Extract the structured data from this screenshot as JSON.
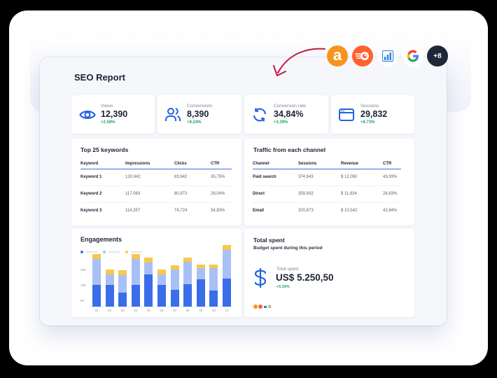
{
  "report": {
    "title": "SEO Report"
  },
  "integrations": {
    "logos": [
      {
        "name": "ahrefs-like-a-logo",
        "glyph": "a",
        "bg": "#f7941d"
      },
      {
        "name": "semrush-logo",
        "bg": "#ff622d"
      },
      {
        "name": "bar-chart-logo",
        "bg": "#ffffff"
      },
      {
        "name": "google-logo",
        "glyph": "G",
        "bg": "#ffffff"
      }
    ],
    "more_label": "+8",
    "more_bg": "#1e2637"
  },
  "kpis": [
    {
      "label": "Views",
      "value": "12,390",
      "change": "+2.59%",
      "icon": "eye-icon"
    },
    {
      "label": "Conversions",
      "value": "8,390",
      "change": "+9.24%",
      "icon": "users-icon"
    },
    {
      "label": "Conversion rate",
      "value": "34,84%",
      "change": "+3.39%",
      "icon": "refresh-icon"
    },
    {
      "label": "Sessions",
      "value": "29,832",
      "change": "+8.73%",
      "icon": "browser-window-icon"
    }
  ],
  "keywords": {
    "title": "Top 25 keywords",
    "columns": [
      "Keyword",
      "Impressions",
      "Clicks",
      "CTR"
    ],
    "rows": [
      [
        "Keyword 1",
        "120,942",
        "83,942",
        "35,75%"
      ],
      [
        "Keyword 2",
        "117,083",
        "80,973",
        "29,04%"
      ],
      [
        "Keyword 3",
        "114,357",
        "74,724",
        "54,83%"
      ]
    ]
  },
  "traffic": {
    "title": "Traffic from each channel",
    "columns": [
      "Channel",
      "Sessions",
      "Revenue",
      "CTR"
    ],
    "rows": [
      [
        "Paid search",
        "374,943",
        "$ 12,050",
        "43,93%"
      ],
      [
        "Direct",
        "359,932",
        "$ 11,934",
        "28,83%"
      ],
      [
        "Email",
        "320,873",
        "$ 10,542",
        "42,84%"
      ]
    ]
  },
  "engagements": {
    "title": "Engagements",
    "colors": {
      "series1": "#3a6ee8",
      "series2": "#a9c0f7",
      "series3": "#f9c846"
    },
    "y_ticks": [
      "150",
      "100",
      "50"
    ],
    "x_labels": [
      "01",
      "02",
      "03",
      "04",
      "05",
      "06",
      "07",
      "08",
      "09",
      "10",
      "11"
    ]
  },
  "chart_data": {
    "type": "bar",
    "stacked": true,
    "title": "Engagements",
    "categories": [
      "01",
      "02",
      "03",
      "04",
      "05",
      "06",
      "07",
      "08",
      "09",
      "10",
      "11"
    ],
    "series": [
      {
        "name": "Series 1",
        "color": "#3a6ee8",
        "values": [
          70,
          70,
          45,
          70,
          105,
          70,
          55,
          72,
          88,
          52,
          90
        ]
      },
      {
        "name": "Series 2",
        "color": "#a9c0f7",
        "values": [
          85,
          35,
          58,
          85,
          38,
          35,
          65,
          73,
          37,
          72,
          95
        ]
      },
      {
        "name": "Series 3",
        "color": "#f9c846",
        "values": [
          15,
          15,
          15,
          15,
          15,
          15,
          15,
          15,
          12,
          12,
          15
        ]
      }
    ],
    "yticks": [
      50,
      100,
      150
    ],
    "ylim": [
      0,
      200
    ],
    "xlabel": "",
    "ylabel": "",
    "legend": {
      "position": "top-left",
      "labels_hidden": true
    }
  },
  "total_spent": {
    "title": "Total spent",
    "subtitle": "Budget spent during this period",
    "label": "Total spent",
    "value": "US$ 5.250,50",
    "change": "+5.35%"
  }
}
